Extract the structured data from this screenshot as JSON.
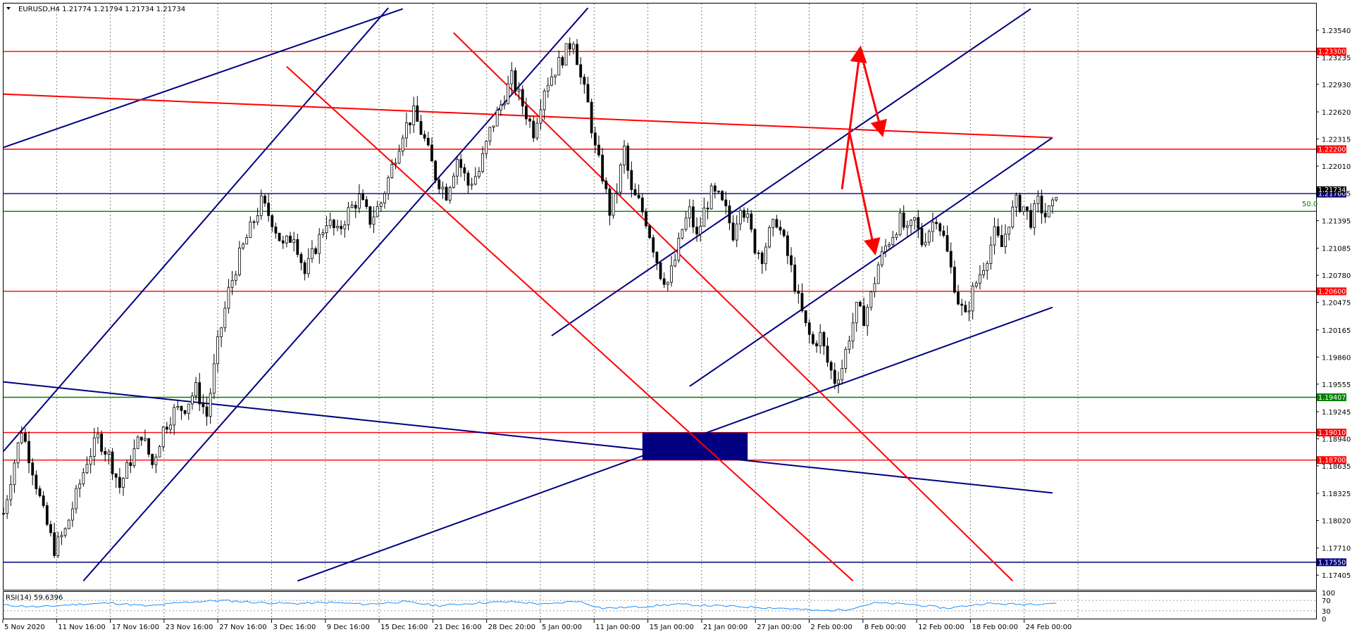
{
  "header": {
    "symbol_line": "EURUSD,H4  1.21774 1.21794 1.21734 1.21734"
  },
  "colors": {
    "red": "#ff0000",
    "navy": "#000080",
    "green": "#008000",
    "rsi": "#1e90ff",
    "grid": "#808080"
  },
  "chart_data": {
    "type": "candlestick",
    "title": "",
    "ylim": [
      1.1724,
      1.2384
    ],
    "y_ticks": [
      "1.23540",
      "1.23235",
      "1.22930",
      "1.22620",
      "1.22315",
      "1.22010",
      "1.21705",
      "1.21395",
      "1.21085",
      "1.20780",
      "1.20475",
      "1.20165",
      "1.19860",
      "1.19555",
      "1.19245",
      "1.18940",
      "1.18635",
      "1.18325",
      "1.18020",
      "1.17710",
      "1.17405"
    ],
    "x_ticks": [
      "5 Nov 2020",
      "11 Nov 16:00",
      "17 Nov 16:00",
      "23 Nov 16:00",
      "27 Nov 16:00",
      "3 Dec 16:00",
      "9 Dec 16:00",
      "15 Dec 16:00",
      "21 Dec 16:00",
      "28 Dec 20:00",
      "5 Jan 00:00",
      "11 Jan 00:00",
      "15 Jan 00:00",
      "21 Jan 00:00",
      "27 Jan 00:00",
      "2 Feb 00:00",
      "8 Feb 00:00",
      "12 Feb 00:00",
      "18 Feb 00:00",
      "24 Feb 00:00"
    ],
    "current_price": "1.21734",
    "fib_label": "50.0",
    "price_path": [
      [
        0,
        1.181
      ],
      [
        2,
        1.185
      ],
      [
        5,
        1.1905
      ],
      [
        8,
        1.186
      ],
      [
        11,
        1.181
      ],
      [
        14,
        1.177
      ],
      [
        17,
        1.179
      ],
      [
        20,
        1.183
      ],
      [
        23,
        1.187
      ],
      [
        26,
        1.1895
      ],
      [
        29,
        1.1875
      ],
      [
        32,
        1.184
      ],
      [
        35,
        1.187
      ],
      [
        38,
        1.19
      ],
      [
        41,
        1.1865
      ],
      [
        44,
        1.1905
      ],
      [
        47,
        1.1925
      ],
      [
        50,
        1.193
      ],
      [
        53,
        1.195
      ],
      [
        56,
        1.192
      ],
      [
        59,
        1.2
      ],
      [
        62,
        1.206
      ],
      [
        65,
        1.21
      ],
      [
        68,
        1.213
      ],
      [
        71,
        1.216
      ],
      [
        74,
        1.214
      ],
      [
        77,
        1.211
      ],
      [
        80,
        1.2125
      ],
      [
        83,
        1.208
      ],
      [
        86,
        1.211
      ],
      [
        89,
        1.214
      ],
      [
        92,
        1.2125
      ],
      [
        95,
        1.215
      ],
      [
        98,
        1.2165
      ],
      [
        101,
        1.214
      ],
      [
        104,
        1.216
      ],
      [
        107,
        1.22
      ],
      [
        110,
        1.224
      ],
      [
        113,
        1.226
      ],
      [
        116,
        1.223
      ],
      [
        119,
        1.219
      ],
      [
        122,
        1.217
      ],
      [
        125,
        1.221
      ],
      [
        128,
        1.218
      ],
      [
        131,
        1.2195
      ],
      [
        134,
        1.224
      ],
      [
        137,
        1.227
      ],
      [
        140,
        1.23
      ],
      [
        143,
        1.227
      ],
      [
        146,
        1.224
      ],
      [
        149,
        1.229
      ],
      [
        152,
        1.231
      ],
      [
        155,
        1.233
      ],
      [
        157,
        1.2345
      ],
      [
        159,
        1.23
      ],
      [
        161,
        1.227
      ],
      [
        163,
        1.222
      ],
      [
        165,
        1.219
      ],
      [
        167,
        1.215
      ],
      [
        169,
        1.2175
      ],
      [
        171,
        1.222
      ],
      [
        173,
        1.217
      ],
      [
        175,
        1.216
      ],
      [
        177,
        1.214
      ],
      [
        179,
        1.211
      ],
      [
        181,
        1.208
      ],
      [
        183,
        1.207
      ],
      [
        185,
        1.2095
      ],
      [
        187,
        1.213
      ],
      [
        189,
        1.215
      ],
      [
        191,
        1.212
      ],
      [
        193,
        1.215
      ],
      [
        195,
        1.217
      ],
      [
        197,
        1.2165
      ],
      [
        199,
        1.215
      ],
      [
        201,
        1.2125
      ],
      [
        203,
        1.216
      ],
      [
        205,
        1.214
      ],
      [
        207,
        1.211
      ],
      [
        209,
        1.21
      ],
      [
        211,
        1.2125
      ],
      [
        213,
        1.214
      ],
      [
        215,
        1.2115
      ],
      [
        217,
        1.2085
      ],
      [
        219,
        1.205
      ],
      [
        221,
        1.202
      ],
      [
        223,
        1.2
      ],
      [
        225,
        1.201
      ],
      [
        227,
        1.198
      ],
      [
        229,
        1.196
      ],
      [
        231,
        1.1975
      ],
      [
        233,
        1.201
      ],
      [
        235,
        1.204
      ],
      [
        237,
        1.203
      ],
      [
        239,
        1.2055
      ],
      [
        241,
        1.209
      ],
      [
        243,
        1.211
      ],
      [
        245,
        1.2125
      ],
      [
        247,
        1.214
      ],
      [
        249,
        1.2125
      ],
      [
        251,
        1.214
      ],
      [
        253,
        1.2115
      ],
      [
        255,
        1.213
      ],
      [
        257,
        1.2145
      ],
      [
        259,
        1.212
      ],
      [
        261,
        1.2085
      ],
      [
        263,
        1.205
      ],
      [
        265,
        1.203
      ],
      [
        267,
        1.206
      ],
      [
        269,
        1.208
      ],
      [
        271,
        1.21
      ],
      [
        273,
        1.2125
      ],
      [
        275,
        1.211
      ],
      [
        277,
        1.214
      ],
      [
        279,
        1.216
      ],
      [
        281,
        1.2155
      ],
      [
        283,
        1.214
      ],
      [
        285,
        1.216
      ],
      [
        287,
        1.2145
      ],
      [
        289,
        1.2155
      ],
      [
        290,
        1.2173
      ]
    ],
    "horizontal_levels": [
      {
        "price": 1.233,
        "label": "1.23300",
        "color": "red"
      },
      {
        "price": 1.222,
        "label": "1.22200",
        "color": "red"
      },
      {
        "price": 1.217,
        "label": "1.21700",
        "color": "navy"
      },
      {
        "price": 1.215,
        "label": "",
        "color": "green"
      },
      {
        "price": 1.206,
        "label": "1.20600",
        "color": "red"
      },
      {
        "price": 1.19407,
        "label": "1.19407",
        "color": "green"
      },
      {
        "price": 1.1901,
        "label": "1.19010",
        "color": "red"
      },
      {
        "price": 1.187,
        "label": "1.18700",
        "color": "red"
      },
      {
        "price": 1.1755,
        "label": "1.17550",
        "color": "navy"
      }
    ],
    "trend_lines": [
      {
        "color": "navy",
        "points": [
          [
            0,
            1.2222
          ],
          [
            110,
            1.2378
          ]
        ]
      },
      {
        "color": "navy",
        "points": [
          [
            0,
            1.188
          ],
          [
            106,
            1.2379
          ]
        ]
      },
      {
        "color": "navy",
        "points": [
          [
            22,
            1.1734
          ],
          [
            161,
            1.2379
          ]
        ]
      },
      {
        "color": "navy",
        "points": [
          [
            0,
            1.1958
          ],
          [
            289,
            1.1833
          ]
        ]
      },
      {
        "color": "navy",
        "points": [
          [
            81,
            1.1734
          ],
          [
            289,
            1.2042
          ]
        ]
      },
      {
        "color": "navy",
        "points": [
          [
            151,
            1.201
          ],
          [
            283,
            1.2378
          ]
        ]
      },
      {
        "color": "navy",
        "points": [
          [
            189,
            1.1953
          ],
          [
            289,
            1.2233
          ]
        ]
      },
      {
        "color": "red",
        "points": [
          [
            0,
            1.2282
          ],
          [
            289,
            1.2233
          ]
        ]
      },
      {
        "color": "red",
        "points": [
          [
            78,
            1.2313
          ],
          [
            234,
            1.1734
          ]
        ]
      },
      {
        "color": "red",
        "points": [
          [
            124,
            1.2351
          ],
          [
            278,
            1.1734
          ]
        ]
      }
    ],
    "demand_zone": {
      "x_from": 176,
      "x_to": 205,
      "price_from": 1.187,
      "price_to": 1.1901
    },
    "projection_arrows": [
      {
        "points": [
          [
            231,
            1.2175
          ],
          [
            236,
            1.2332
          ],
          [
            242,
            1.2238
          ]
        ]
      },
      {
        "points": [
          [
            233,
            1.224
          ],
          [
            240,
            1.2105
          ]
        ]
      }
    ],
    "rsi": {
      "label": "RSI(14) 59.6396",
      "levels": [
        "70",
        "30"
      ],
      "scale_labels": [
        "100",
        "70",
        "30",
        "0"
      ],
      "values": [
        [
          0,
          52
        ],
        [
          10,
          45
        ],
        [
          20,
          55
        ],
        [
          30,
          60
        ],
        [
          40,
          48
        ],
        [
          50,
          63
        ],
        [
          60,
          70
        ],
        [
          70,
          62
        ],
        [
          80,
          58
        ],
        [
          90,
          62
        ],
        [
          100,
          55
        ],
        [
          110,
          65
        ],
        [
          120,
          50
        ],
        [
          130,
          60
        ],
        [
          140,
          65
        ],
        [
          150,
          55
        ],
        [
          158,
          68
        ],
        [
          165,
          40
        ],
        [
          175,
          45
        ],
        [
          185,
          55
        ],
        [
          195,
          50
        ],
        [
          205,
          45
        ],
        [
          215,
          40
        ],
        [
          225,
          30
        ],
        [
          232,
          35
        ],
        [
          240,
          60
        ],
        [
          250,
          55
        ],
        [
          260,
          40
        ],
        [
          270,
          58
        ],
        [
          280,
          55
        ],
        [
          290,
          60
        ]
      ]
    }
  }
}
